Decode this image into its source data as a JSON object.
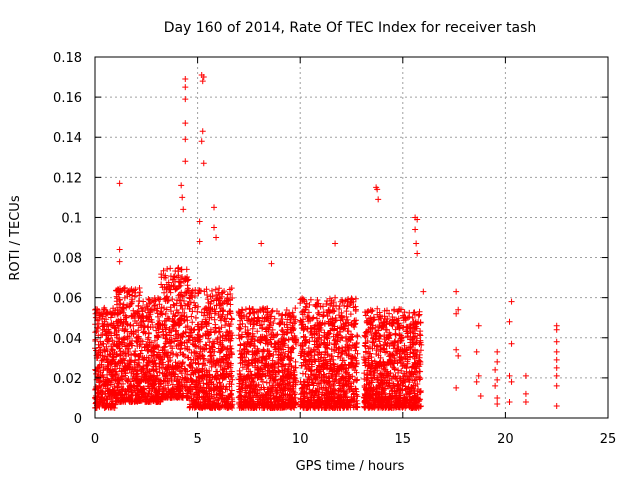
{
  "chart_data": {
    "type": "scatter",
    "title": "Day 160 of 2014, Rate Of TEC Index for receiver tash",
    "xlabel": "GPS time / hours",
    "ylabel": "ROTI / TECUs",
    "xlim": [
      0,
      25
    ],
    "ylim": [
      0,
      0.18
    ],
    "xticks": [
      0,
      5,
      10,
      15,
      20,
      25
    ],
    "yticks": [
      0,
      0.02,
      0.04,
      0.06,
      0.08,
      0.1,
      0.12,
      0.14,
      0.16,
      0.18
    ],
    "xtick_labels": [
      "0",
      "5",
      "10",
      "15",
      "20",
      "25"
    ],
    "ytick_labels": [
      "0",
      "0.02",
      "0.04",
      "0.06",
      "0.08",
      "0.1",
      "0.12",
      "0.14",
      "0.16",
      "0.18"
    ],
    "grid": true,
    "marker": "+",
    "color": "#ff0000",
    "dense_bands": [
      {
        "x_range": [
          0.0,
          1.0
        ],
        "y_range": [
          0.005,
          0.055
        ]
      },
      {
        "x_range": [
          1.0,
          2.2
        ],
        "y_range": [
          0.008,
          0.065
        ]
      },
      {
        "x_range": [
          2.2,
          3.2
        ],
        "y_range": [
          0.008,
          0.06
        ]
      },
      {
        "x_range": [
          3.2,
          4.6
        ],
        "y_range": [
          0.01,
          0.075
        ]
      },
      {
        "x_range": [
          4.6,
          6.7
        ],
        "y_range": [
          0.005,
          0.065
        ]
      },
      {
        "x_range": [
          7.0,
          9.8
        ],
        "y_range": [
          0.005,
          0.055
        ]
      },
      {
        "x_range": [
          10.0,
          12.8
        ],
        "y_range": [
          0.005,
          0.06
        ]
      },
      {
        "x_range": [
          13.1,
          15.9
        ],
        "y_range": [
          0.005,
          0.055
        ]
      }
    ],
    "notable_points": [
      {
        "x": 1.2,
        "y": 0.117
      },
      {
        "x": 1.2,
        "y": 0.084
      },
      {
        "x": 1.2,
        "y": 0.078
      },
      {
        "x": 4.2,
        "y": 0.116
      },
      {
        "x": 4.25,
        "y": 0.11
      },
      {
        "x": 4.3,
        "y": 0.104
      },
      {
        "x": 4.4,
        "y": 0.169
      },
      {
        "x": 4.4,
        "y": 0.165
      },
      {
        "x": 4.4,
        "y": 0.159
      },
      {
        "x": 4.4,
        "y": 0.147
      },
      {
        "x": 4.4,
        "y": 0.139
      },
      {
        "x": 4.4,
        "y": 0.128
      },
      {
        "x": 5.2,
        "y": 0.171
      },
      {
        "x": 5.25,
        "y": 0.168
      },
      {
        "x": 5.3,
        "y": 0.17
      },
      {
        "x": 5.25,
        "y": 0.143
      },
      {
        "x": 5.2,
        "y": 0.138
      },
      {
        "x": 5.3,
        "y": 0.127
      },
      {
        "x": 5.1,
        "y": 0.098
      },
      {
        "x": 5.1,
        "y": 0.088
      },
      {
        "x": 5.8,
        "y": 0.105
      },
      {
        "x": 5.8,
        "y": 0.095
      },
      {
        "x": 5.9,
        "y": 0.09
      },
      {
        "x": 8.1,
        "y": 0.087
      },
      {
        "x": 8.6,
        "y": 0.077
      },
      {
        "x": 11.7,
        "y": 0.087
      },
      {
        "x": 13.7,
        "y": 0.115
      },
      {
        "x": 13.75,
        "y": 0.114
      },
      {
        "x": 13.8,
        "y": 0.109
      },
      {
        "x": 15.6,
        "y": 0.1
      },
      {
        "x": 15.7,
        "y": 0.099
      },
      {
        "x": 15.6,
        "y": 0.094
      },
      {
        "x": 15.65,
        "y": 0.087
      },
      {
        "x": 15.7,
        "y": 0.082
      },
      {
        "x": 16.0,
        "y": 0.063
      },
      {
        "x": 17.6,
        "y": 0.063
      },
      {
        "x": 17.7,
        "y": 0.054
      },
      {
        "x": 17.6,
        "y": 0.052
      },
      {
        "x": 17.6,
        "y": 0.034
      },
      {
        "x": 17.7,
        "y": 0.031
      },
      {
        "x": 17.6,
        "y": 0.015
      },
      {
        "x": 18.7,
        "y": 0.046
      },
      {
        "x": 18.6,
        "y": 0.033
      },
      {
        "x": 18.7,
        "y": 0.021
      },
      {
        "x": 18.6,
        "y": 0.018
      },
      {
        "x": 18.8,
        "y": 0.011
      },
      {
        "x": 19.6,
        "y": 0.033
      },
      {
        "x": 19.6,
        "y": 0.028
      },
      {
        "x": 19.5,
        "y": 0.024
      },
      {
        "x": 19.6,
        "y": 0.019
      },
      {
        "x": 19.5,
        "y": 0.016
      },
      {
        "x": 19.6,
        "y": 0.01
      },
      {
        "x": 19.6,
        "y": 0.007
      },
      {
        "x": 20.3,
        "y": 0.058
      },
      {
        "x": 20.2,
        "y": 0.048
      },
      {
        "x": 20.3,
        "y": 0.037
      },
      {
        "x": 20.2,
        "y": 0.021
      },
      {
        "x": 20.3,
        "y": 0.018
      },
      {
        "x": 20.2,
        "y": 0.008
      },
      {
        "x": 21.0,
        "y": 0.021
      },
      {
        "x": 21.0,
        "y": 0.012
      },
      {
        "x": 21.0,
        "y": 0.008
      },
      {
        "x": 22.5,
        "y": 0.046
      },
      {
        "x": 22.5,
        "y": 0.044
      },
      {
        "x": 22.5,
        "y": 0.038
      },
      {
        "x": 22.5,
        "y": 0.033
      },
      {
        "x": 22.5,
        "y": 0.029
      },
      {
        "x": 22.5,
        "y": 0.025
      },
      {
        "x": 22.5,
        "y": 0.021
      },
      {
        "x": 22.5,
        "y": 0.016
      },
      {
        "x": 22.5,
        "y": 0.006
      }
    ]
  }
}
